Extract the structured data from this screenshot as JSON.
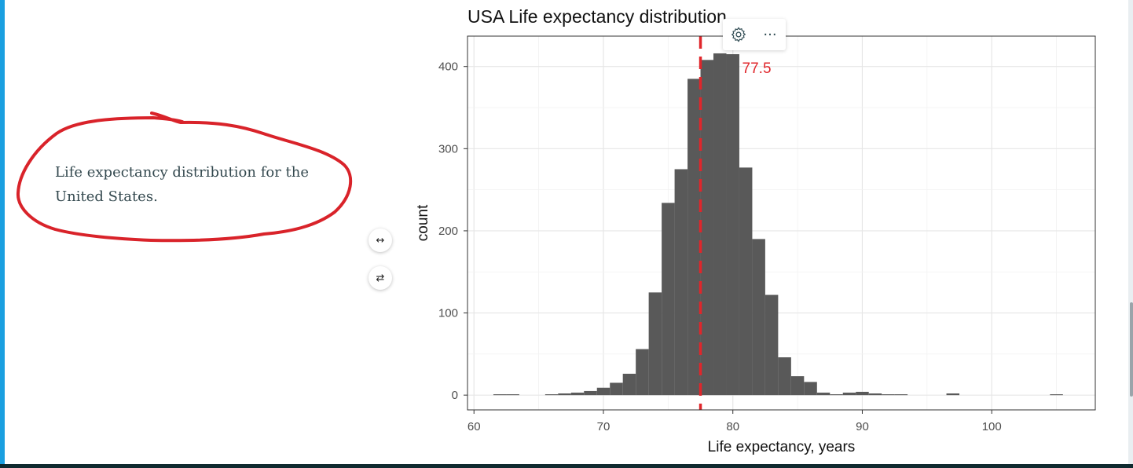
{
  "caption": {
    "text": "Life expectancy distribution for the United States."
  },
  "side_buttons": [
    {
      "icon": "↔",
      "name": "expand-width-icon"
    },
    {
      "icon": "⇄",
      "name": "swap-icon"
    }
  ],
  "toolbar": {
    "settings_icon": "gear-icon",
    "more_icon": "more-icon",
    "more_label": "···"
  },
  "colors": {
    "annotation": "#e0262b",
    "bars": "#595959",
    "text": "#34494f",
    "accent": "#1a9fe0"
  },
  "chart_data": {
    "type": "bar",
    "title": "USA Life expectancy distribution",
    "xlabel": "Life expectancy, years",
    "ylabel": "count",
    "xlim": [
      59.5,
      108
    ],
    "ylim": [
      -18,
      437
    ],
    "x_ticks": [
      60,
      70,
      80,
      90,
      100
    ],
    "y_ticks": [
      0,
      100,
      200,
      300,
      400
    ],
    "bin_width": 1,
    "bins": [
      {
        "x0": 61.5,
        "count": 1
      },
      {
        "x0": 62.5,
        "count": 1
      },
      {
        "x0": 65.5,
        "count": 1
      },
      {
        "x0": 66.5,
        "count": 2
      },
      {
        "x0": 67.5,
        "count": 3
      },
      {
        "x0": 68.5,
        "count": 5
      },
      {
        "x0": 69.5,
        "count": 9
      },
      {
        "x0": 70.5,
        "count": 15
      },
      {
        "x0": 71.5,
        "count": 26
      },
      {
        "x0": 72.5,
        "count": 56
      },
      {
        "x0": 73.5,
        "count": 125
      },
      {
        "x0": 74.5,
        "count": 234
      },
      {
        "x0": 75.5,
        "count": 275
      },
      {
        "x0": 76.5,
        "count": 385
      },
      {
        "x0": 77.5,
        "count": 408
      },
      {
        "x0": 78.5,
        "count": 416
      },
      {
        "x0": 79.5,
        "count": 415
      },
      {
        "x0": 80.5,
        "count": 277
      },
      {
        "x0": 81.5,
        "count": 190
      },
      {
        "x0": 82.5,
        "count": 122
      },
      {
        "x0": 83.5,
        "count": 46
      },
      {
        "x0": 84.5,
        "count": 23
      },
      {
        "x0": 85.5,
        "count": 16
      },
      {
        "x0": 86.5,
        "count": 3
      },
      {
        "x0": 87.5,
        "count": 1
      },
      {
        "x0": 88.5,
        "count": 3
      },
      {
        "x0": 89.5,
        "count": 4
      },
      {
        "x0": 90.5,
        "count": 2
      },
      {
        "x0": 91.5,
        "count": 1
      },
      {
        "x0": 92.5,
        "count": 1
      },
      {
        "x0": 96.5,
        "count": 2
      },
      {
        "x0": 104.5,
        "count": 1
      }
    ],
    "mean_line": {
      "x": 77.5,
      "label": "77.5",
      "style": "dashed",
      "color": "#e0262b"
    },
    "grid": true,
    "background": "white"
  }
}
